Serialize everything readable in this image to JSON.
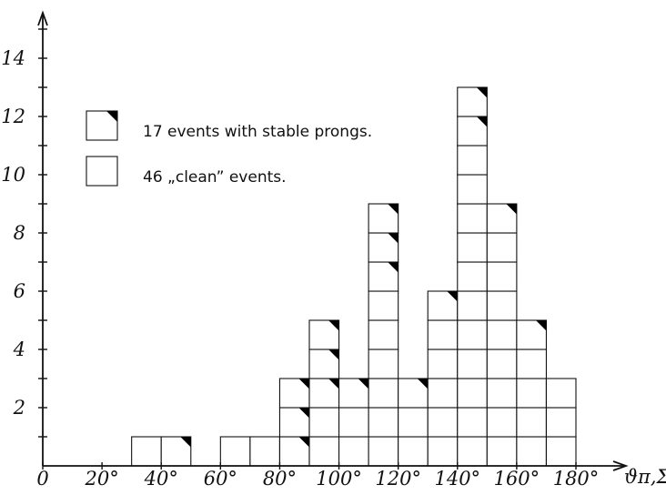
{
  "chart_data": {
    "type": "bar",
    "stacked": true,
    "xlabel": "ϑπ,Σ",
    "x_unit": "°",
    "x_ticks": [
      "0",
      "20°",
      "40°",
      "60°",
      "80°",
      "100°",
      "120°",
      "140°",
      "160°",
      "180°"
    ],
    "y_ticks": [
      "2",
      "4",
      "6",
      "8",
      "10",
      "12",
      "14"
    ],
    "xlim": [
      0,
      180
    ],
    "ylim": [
      0,
      15
    ],
    "bin_width": 10,
    "bins": [
      30,
      40,
      50,
      60,
      70,
      80,
      90,
      100,
      110,
      120,
      130,
      140,
      150,
      160,
      170
    ],
    "series": [
      {
        "name": "46 „clean” events.",
        "values": [
          1,
          0,
          0,
          1,
          1,
          0,
          2,
          2,
          6,
          2,
          5,
          11,
          8,
          4,
          3
        ]
      },
      {
        "name": "17 events with stable prongs.",
        "values": [
          0,
          1,
          0,
          0,
          0,
          3,
          3,
          1,
          3,
          1,
          1,
          2,
          1,
          1,
          0
        ]
      }
    ],
    "legend_position": "top-left"
  },
  "colors": {
    "ink": "#111111",
    "background": "#ffffff",
    "corner_mark": "#000000"
  }
}
